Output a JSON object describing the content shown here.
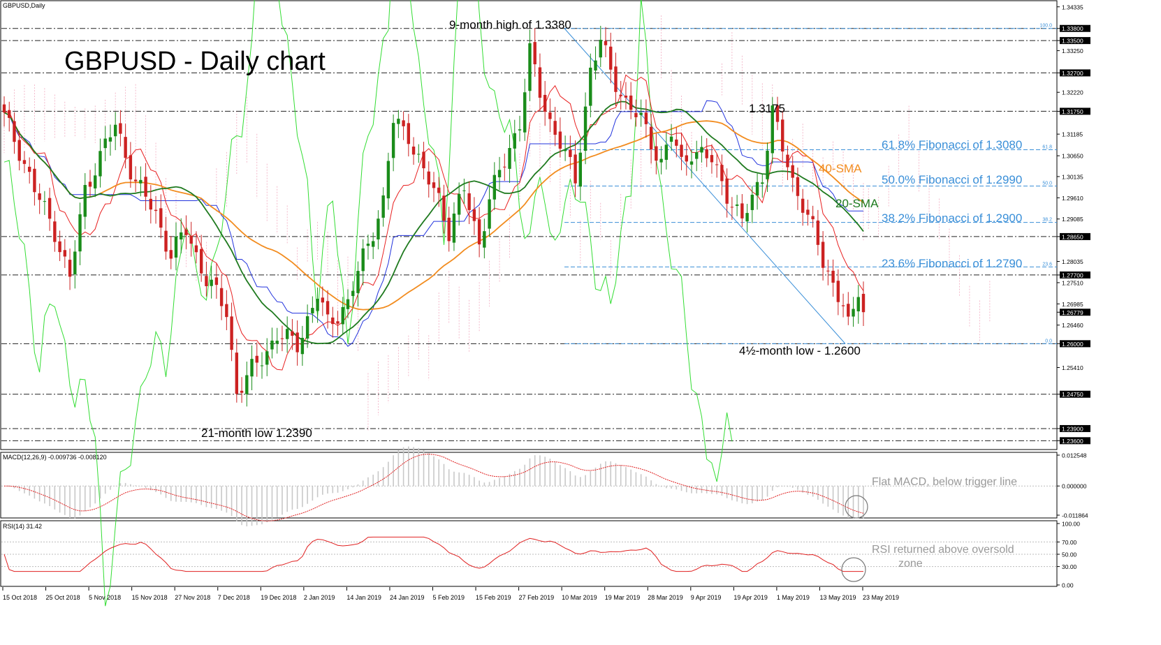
{
  "window": {
    "symbol_label": "GBPUSD,Daily"
  },
  "annotations": {
    "title": "GBPUSD - Daily chart",
    "high_label": "9-month high of 1.3380",
    "low21_label": "21-month low 1.2390",
    "peak_label": "1.3175",
    "low45_label": "4½-month low - 1.2600",
    "fib618": "61.8% Fibonacci of 1.3080",
    "fib500": "50.0% Fibonacci of 1.2990",
    "fib382": "38.2% Fibonacci of 1.2900",
    "fib236": "23.6% Fibonacci of 1.2790",
    "sma40": "40-SMA",
    "sma20": "20-SMA",
    "macd_note": "Flat MACD, below trigger line",
    "rsi_note_1": "RSI returned above oversold",
    "rsi_note_2": "zone"
  },
  "colors": {
    "candle_up": "#1a8c1a",
    "candle_down": "#cc2222",
    "sma20": "#1f7a1f",
    "sma40": "#f28c1f",
    "tenkan": "#e82020",
    "kijun": "#2233dd",
    "chikou": "#33dd33",
    "fib": "#3a8fd8",
    "cloud": "#f0a0b8",
    "macd_signal": "#e02020",
    "macd_hist": "#c8c8c8",
    "rsi": "#e02020"
  },
  "chart_data": [
    {
      "type": "candlestick",
      "name": "GBPUSD Daily",
      "x_ticks": [
        "15 Oct 2018",
        "25 Oct 2018",
        "5 Nov 2018",
        "15 Nov 2018",
        "27 Nov 2018",
        "7 Dec 2018",
        "19 Dec 2018",
        "2 Jan 2019",
        "14 Jan 2019",
        "24 Jan 2019",
        "5 Feb 2019",
        "15 Feb 2019",
        "27 Feb 2019",
        "10 Mar 2019",
        "19 Mar 2019",
        "28 Mar 2019",
        "9 Apr 2019",
        "19 Apr 2019",
        "1 May 2019",
        "13 May 2019",
        "23 May 2019"
      ],
      "y_ticks": [
        "1.34335",
        "1.33800",
        "1.33500",
        "1.33250",
        "1.32700",
        "1.32220",
        "1.31750",
        "1.31185",
        "1.30650",
        "1.30135",
        "1.29610",
        "1.29085",
        "1.28650",
        "1.28035",
        "1.27700",
        "1.27510",
        "1.26985",
        "1.26779",
        "1.26460",
        "1.26000",
        "1.25410",
        "1.24750",
        "1.23900",
        "1.23600"
      ],
      "ylim": [
        1.2345,
        1.344
      ],
      "current_price": "1.26779",
      "key_levels": [
        {
          "value": 1.338,
          "label": "1.33800"
        },
        {
          "value": 1.335,
          "label": "1.33500"
        },
        {
          "value": 1.327,
          "label": "1.32700"
        },
        {
          "value": 1.3175,
          "label": "1.31750"
        },
        {
          "value": 1.2865,
          "label": "1.28650"
        },
        {
          "value": 1.277,
          "label": "1.27700"
        },
        {
          "value": 1.26,
          "label": "1.26000"
        },
        {
          "value": 1.2475,
          "label": "1.24750"
        },
        {
          "value": 1.239,
          "label": "1.23900"
        },
        {
          "value": 1.236,
          "label": "1.23600"
        }
      ],
      "fibonacci": [
        {
          "pct": "100.0",
          "value": 1.338
        },
        {
          "pct": "61.8",
          "value": 1.308
        },
        {
          "pct": "50.0",
          "value": 1.299
        },
        {
          "pct": "38.2",
          "value": 1.29
        },
        {
          "pct": "23.6",
          "value": 1.279
        },
        {
          "pct": "0.0",
          "value": 1.26
        }
      ],
      "close_anchors": [
        [
          0,
          1.316
        ],
        [
          3,
          1.308
        ],
        [
          6,
          1.298
        ],
        [
          10,
          1.288
        ],
        [
          13,
          1.276
        ],
        [
          16,
          1.298
        ],
        [
          18,
          1.304
        ],
        [
          22,
          1.314
        ],
        [
          26,
          1.3
        ],
        [
          30,
          1.292
        ],
        [
          33,
          1.282
        ],
        [
          36,
          1.288
        ],
        [
          40,
          1.276
        ],
        [
          44,
          1.268
        ],
        [
          46,
          1.248
        ],
        [
          50,
          1.255
        ],
        [
          54,
          1.262
        ],
        [
          58,
          1.26
        ],
        [
          62,
          1.272
        ],
        [
          64,
          1.265
        ],
        [
          68,
          1.27
        ],
        [
          72,
          1.285
        ],
        [
          75,
          1.295
        ],
        [
          77,
          1.315
        ],
        [
          80,
          1.312
        ],
        [
          83,
          1.302
        ],
        [
          86,
          1.296
        ],
        [
          88,
          1.288
        ],
        [
          91,
          1.298
        ],
        [
          94,
          1.285
        ],
        [
          96,
          1.296
        ],
        [
          99,
          1.305
        ],
        [
          102,
          1.315
        ],
        [
          104,
          1.332
        ],
        [
          106,
          1.322
        ],
        [
          108,
          1.315
        ],
        [
          110,
          1.31
        ],
        [
          113,
          1.3
        ],
        [
          116,
          1.328
        ],
        [
          118,
          1.335
        ],
        [
          120,
          1.327
        ],
        [
          123,
          1.32
        ],
        [
          126,
          1.315
        ],
        [
          128,
          1.31
        ],
        [
          130,
          1.305
        ],
        [
          132,
          1.312
        ],
        [
          134,
          1.304
        ],
        [
          136,
          1.308
        ],
        [
          138,
          1.307
        ],
        [
          140,
          1.305
        ],
        [
          142,
          1.3
        ],
        [
          144,
          1.295
        ],
        [
          146,
          1.29
        ],
        [
          148,
          1.296
        ],
        [
          150,
          1.302
        ],
        [
          151,
          1.31
        ],
        [
          152,
          1.3175
        ],
        [
          154,
          1.308
        ],
        [
          156,
          1.3
        ],
        [
          158,
          1.295
        ],
        [
          160,
          1.288
        ],
        [
          162,
          1.28
        ],
        [
          164,
          1.275
        ],
        [
          166,
          1.27
        ],
        [
          167,
          1.264
        ],
        [
          168,
          1.267
        ],
        [
          169,
          1.273
        ],
        [
          170,
          1.2678
        ]
      ],
      "macd": {
        "label": "MACD(12,26,9) -0.009736 -0.008120",
        "y_ticks": [
          "0.012548",
          "0.000000",
          "-0.011864"
        ]
      },
      "rsi": {
        "label": "RSI(14) 31.42",
        "y_ticks": [
          "100.00",
          "70.00",
          "50.00",
          "30.00",
          "0.00"
        ]
      }
    }
  ]
}
